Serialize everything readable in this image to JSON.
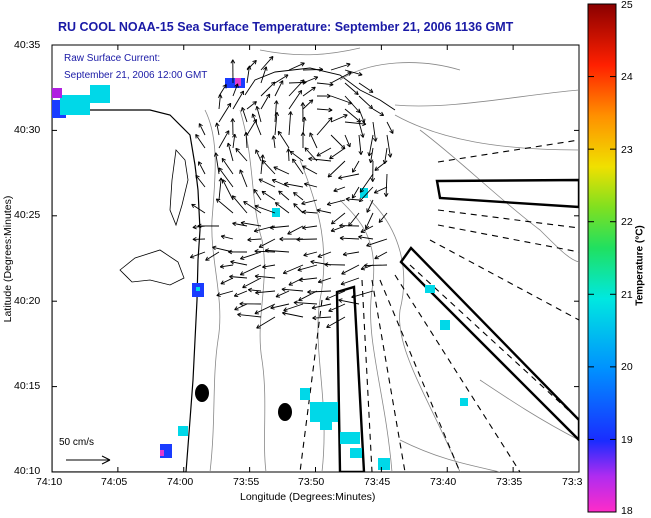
{
  "title": "RU COOL  NOAA-15  Sea Surface Temperature:  September 21, 2006 1136 GMT",
  "current_note": {
    "line1": "Raw Surface Current:",
    "line2": "September 21, 2006 12:00 GMT"
  },
  "scale_label": "50 cm/s",
  "axes": {
    "xlabel": "Longitude (Degrees:Minutes)",
    "ylabel": "Latitude (Degrees:Minutes)",
    "xticks": [
      "74:10",
      "74:05",
      "74:00",
      "73:55",
      "73:50",
      "73:45",
      "73:40",
      "73:35",
      "73:3"
    ],
    "yticks": [
      "40:35",
      "40:30",
      "40:25",
      "40:20",
      "40:15",
      "40:10"
    ]
  },
  "colorbar": {
    "label": "Temperature (°C)",
    "ticks": [
      "25",
      "24",
      "23",
      "22",
      "21",
      "20",
      "19",
      "18"
    ],
    "min": 18,
    "max": 25
  },
  "colors": {
    "title": "#1a1aa6",
    "warm_sst": "#00d8e8",
    "cool_sst": "#1a3cff"
  }
}
